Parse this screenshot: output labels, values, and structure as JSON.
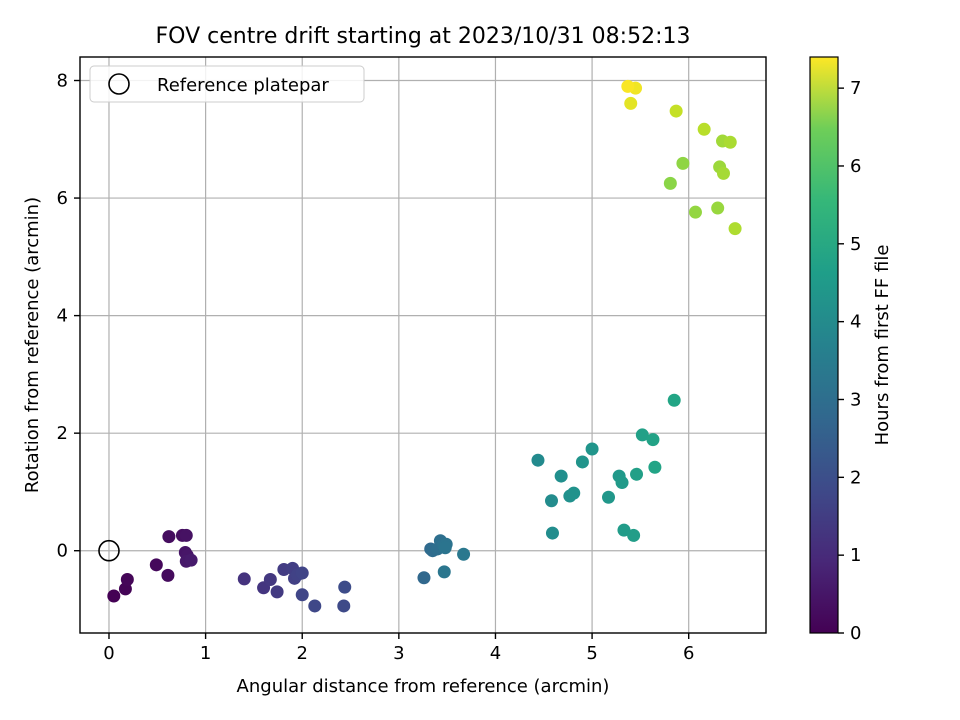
{
  "chart_data": {
    "type": "scatter",
    "title": "FOV centre drift starting at 2023/10/31 08:52:13",
    "xlabel": "Angular distance from reference (arcmin)",
    "ylabel": "Rotation from reference (arcmin)",
    "xlim": [
      -0.3,
      6.8
    ],
    "ylim": [
      -1.4,
      8.4
    ],
    "xticks": [
      0,
      1,
      2,
      3,
      4,
      5,
      6
    ],
    "yticks": [
      0,
      2,
      4,
      6,
      8
    ],
    "grid": true,
    "legend": {
      "placement": "top-left",
      "entries": [
        "Reference platepar"
      ]
    },
    "reference_point": {
      "label": "Reference platepar",
      "x": 0,
      "y": 0
    },
    "colorbar": {
      "label": "Hours from first FF file",
      "colormap": "viridis",
      "range": [
        0,
        7.4
      ],
      "ticks": [
        0,
        1,
        2,
        3,
        4,
        5,
        6,
        7
      ]
    },
    "series": [
      {
        "points": [
          {
            "x": 0.05,
            "y": -0.77,
            "hours": 0.0
          },
          {
            "x": 0.17,
            "y": -0.65,
            "hours": 0.05
          },
          {
            "x": 0.19,
            "y": -0.49,
            "hours": 0.1
          },
          {
            "x": 0.49,
            "y": -0.24,
            "hours": 0.15
          },
          {
            "x": 0.61,
            "y": -0.42,
            "hours": 0.2
          },
          {
            "x": 0.62,
            "y": 0.24,
            "hours": 0.25
          },
          {
            "x": 0.76,
            "y": 0.26,
            "hours": 0.3
          },
          {
            "x": 0.8,
            "y": 0.26,
            "hours": 0.35
          },
          {
            "x": 0.79,
            "y": -0.03,
            "hours": 0.4
          },
          {
            "x": 0.81,
            "y": -0.08,
            "hours": 0.45
          },
          {
            "x": 0.8,
            "y": -0.18,
            "hours": 0.5
          },
          {
            "x": 0.85,
            "y": -0.16,
            "hours": 0.55
          },
          {
            "x": 1.4,
            "y": -0.48,
            "hours": 1.1
          },
          {
            "x": 1.6,
            "y": -0.63,
            "hours": 1.15
          },
          {
            "x": 1.67,
            "y": -0.49,
            "hours": 1.2
          },
          {
            "x": 1.74,
            "y": -0.7,
            "hours": 1.25
          },
          {
            "x": 1.81,
            "y": -0.32,
            "hours": 1.3
          },
          {
            "x": 1.9,
            "y": -0.3,
            "hours": 1.35
          },
          {
            "x": 1.92,
            "y": -0.47,
            "hours": 1.4
          },
          {
            "x": 1.95,
            "y": -0.41,
            "hours": 1.45
          },
          {
            "x": 2.0,
            "y": -0.38,
            "hours": 1.5
          },
          {
            "x": 2.0,
            "y": -0.75,
            "hours": 1.55
          },
          {
            "x": 2.13,
            "y": -0.94,
            "hours": 1.6
          },
          {
            "x": 2.43,
            "y": -0.94,
            "hours": 1.65
          },
          {
            "x": 2.44,
            "y": -0.62,
            "hours": 1.7
          },
          {
            "x": 3.26,
            "y": -0.46,
            "hours": 2.5
          },
          {
            "x": 3.33,
            "y": 0.03,
            "hours": 2.55
          },
          {
            "x": 3.35,
            "y": 0.0,
            "hours": 2.6
          },
          {
            "x": 3.4,
            "y": 0.03,
            "hours": 2.65
          },
          {
            "x": 3.43,
            "y": 0.17,
            "hours": 2.7
          },
          {
            "x": 3.46,
            "y": 0.1,
            "hours": 2.75
          },
          {
            "x": 3.49,
            "y": 0.11,
            "hours": 2.8
          },
          {
            "x": 3.48,
            "y": 0.05,
            "hours": 2.85
          },
          {
            "x": 3.47,
            "y": -0.36,
            "hours": 2.9
          },
          {
            "x": 3.67,
            "y": -0.06,
            "hours": 2.95
          },
          {
            "x": 4.44,
            "y": 1.54,
            "hours": 3.5
          },
          {
            "x": 4.58,
            "y": 0.85,
            "hours": 3.55
          },
          {
            "x": 4.59,
            "y": 0.3,
            "hours": 3.6
          },
          {
            "x": 4.68,
            "y": 1.27,
            "hours": 3.65
          },
          {
            "x": 4.77,
            "y": 0.93,
            "hours": 3.7
          },
          {
            "x": 4.81,
            "y": 0.98,
            "hours": 3.75
          },
          {
            "x": 4.9,
            "y": 1.51,
            "hours": 3.8
          },
          {
            "x": 5.0,
            "y": 1.73,
            "hours": 3.85
          },
          {
            "x": 5.17,
            "y": 0.91,
            "hours": 3.9
          },
          {
            "x": 5.28,
            "y": 1.27,
            "hours": 3.95
          },
          {
            "x": 5.31,
            "y": 1.16,
            "hours": 4.0
          },
          {
            "x": 5.33,
            "y": 0.35,
            "hours": 4.05
          },
          {
            "x": 5.43,
            "y": 0.26,
            "hours": 4.1
          },
          {
            "x": 5.46,
            "y": 1.3,
            "hours": 4.15
          },
          {
            "x": 5.52,
            "y": 1.97,
            "hours": 4.2
          },
          {
            "x": 5.63,
            "y": 1.89,
            "hours": 4.25
          },
          {
            "x": 5.65,
            "y": 1.42,
            "hours": 4.3
          },
          {
            "x": 5.85,
            "y": 2.56,
            "hours": 4.35
          },
          {
            "x": 5.81,
            "y": 6.25,
            "hours": 6.1
          },
          {
            "x": 5.94,
            "y": 6.59,
            "hours": 6.15
          },
          {
            "x": 6.07,
            "y": 5.76,
            "hours": 6.2
          },
          {
            "x": 6.3,
            "y": 5.83,
            "hours": 6.25
          },
          {
            "x": 6.32,
            "y": 6.53,
            "hours": 6.3
          },
          {
            "x": 6.35,
            "y": 6.97,
            "hours": 6.35
          },
          {
            "x": 6.36,
            "y": 6.42,
            "hours": 6.4
          },
          {
            "x": 6.43,
            "y": 6.95,
            "hours": 6.45
          },
          {
            "x": 6.48,
            "y": 5.48,
            "hours": 6.5
          },
          {
            "x": 6.16,
            "y": 7.17,
            "hours": 6.6
          },
          {
            "x": 5.87,
            "y": 7.48,
            "hours": 6.75
          },
          {
            "x": 5.4,
            "y": 7.61,
            "hours": 7.1
          },
          {
            "x": 5.45,
            "y": 7.87,
            "hours": 7.25
          },
          {
            "x": 5.37,
            "y": 7.9,
            "hours": 7.35
          }
        ]
      }
    ]
  }
}
